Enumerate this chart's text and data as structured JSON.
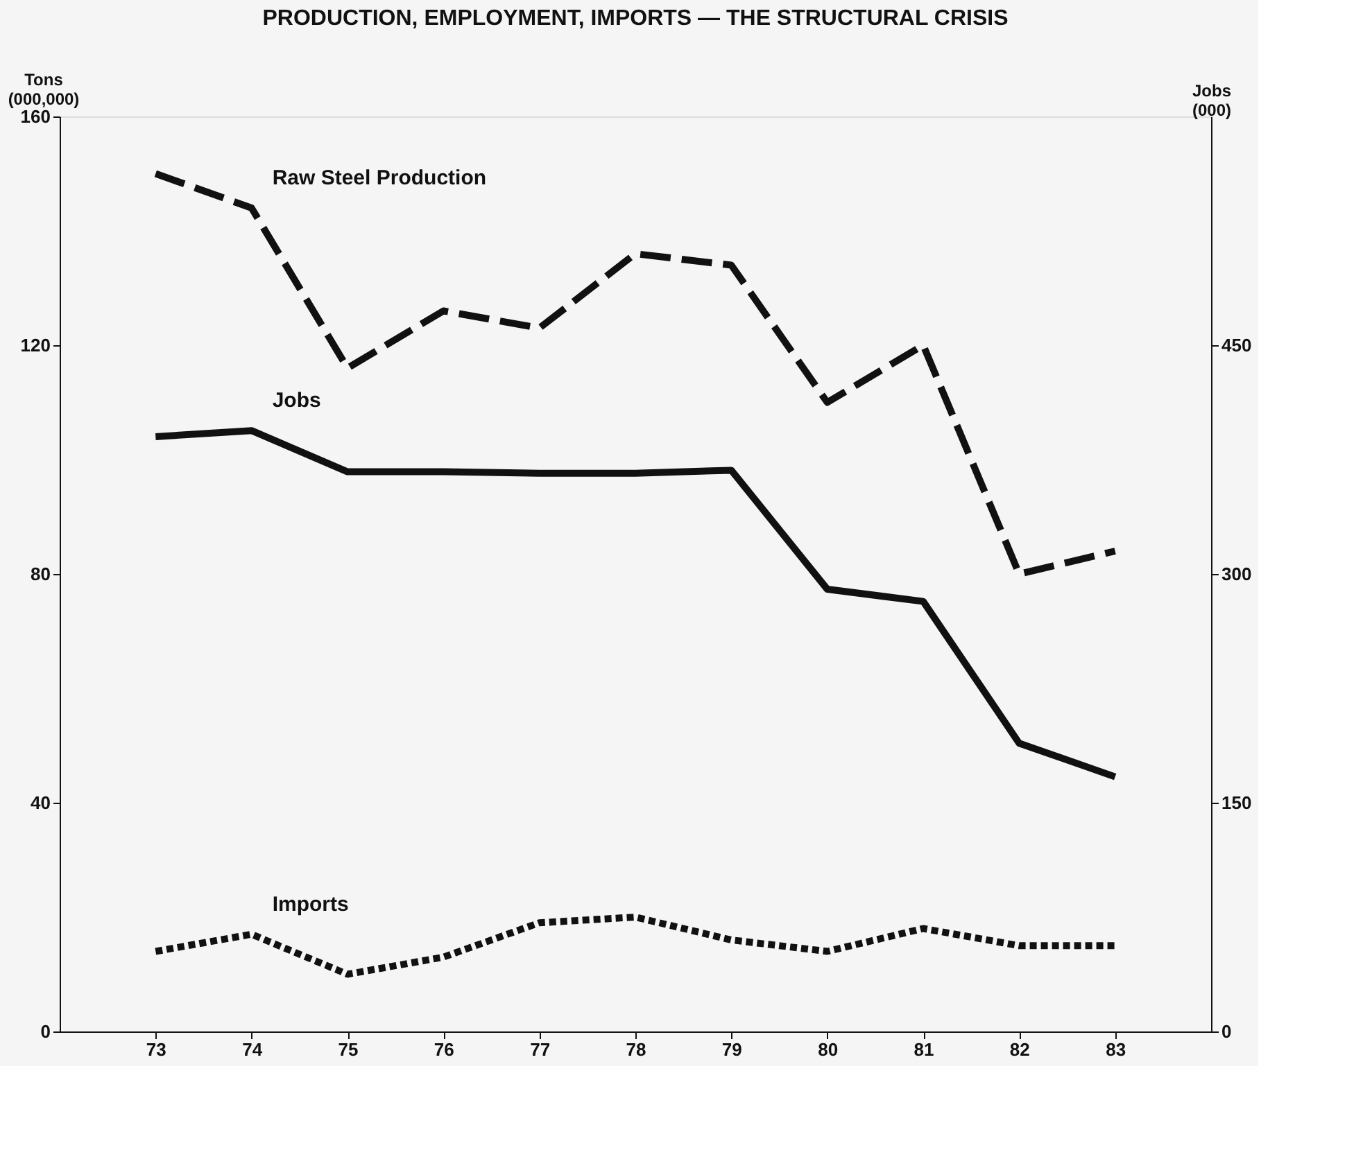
{
  "chart_data": {
    "type": "line",
    "title": "PRODUCTION, EMPLOYMENT, IMPORTS — THE STRUCTURAL CRISIS",
    "ylabel": "Tons (000,000)",
    "y2label": "Jobs (000)",
    "x": [
      73,
      74,
      75,
      76,
      77,
      78,
      79,
      80,
      81,
      82,
      83
    ],
    "xlim": [
      72,
      84
    ],
    "xticks": [
      73,
      74,
      75,
      76,
      77,
      78,
      79,
      80,
      81,
      82,
      83
    ],
    "ylim": [
      0,
      160
    ],
    "yticks": [
      0,
      40,
      80,
      120,
      160
    ],
    "y2lim": [
      0,
      600
    ],
    "y2ticks": [
      0,
      150,
      300,
      450
    ],
    "grid": false,
    "legend": false,
    "marker": "none",
    "series": [
      {
        "name": "Raw Steel Production",
        "color": "#111111",
        "line_style": "dashed",
        "values": [
          150,
          144,
          116,
          126,
          123,
          136,
          134,
          110,
          120,
          80,
          84
        ]
      },
      {
        "name": "Jobs",
        "color": "#111111",
        "line_style": "solid",
        "axis": "y2",
        "values": [
          390,
          394,
          367,
          367,
          366,
          366,
          368,
          290,
          282,
          189,
          167
        ]
      },
      {
        "name": "Imports",
        "color": "#111111",
        "line_style": "dotted",
        "values": [
          14,
          17,
          10,
          13,
          19,
          20,
          16,
          14,
          18,
          15,
          15
        ]
      }
    ]
  }
}
